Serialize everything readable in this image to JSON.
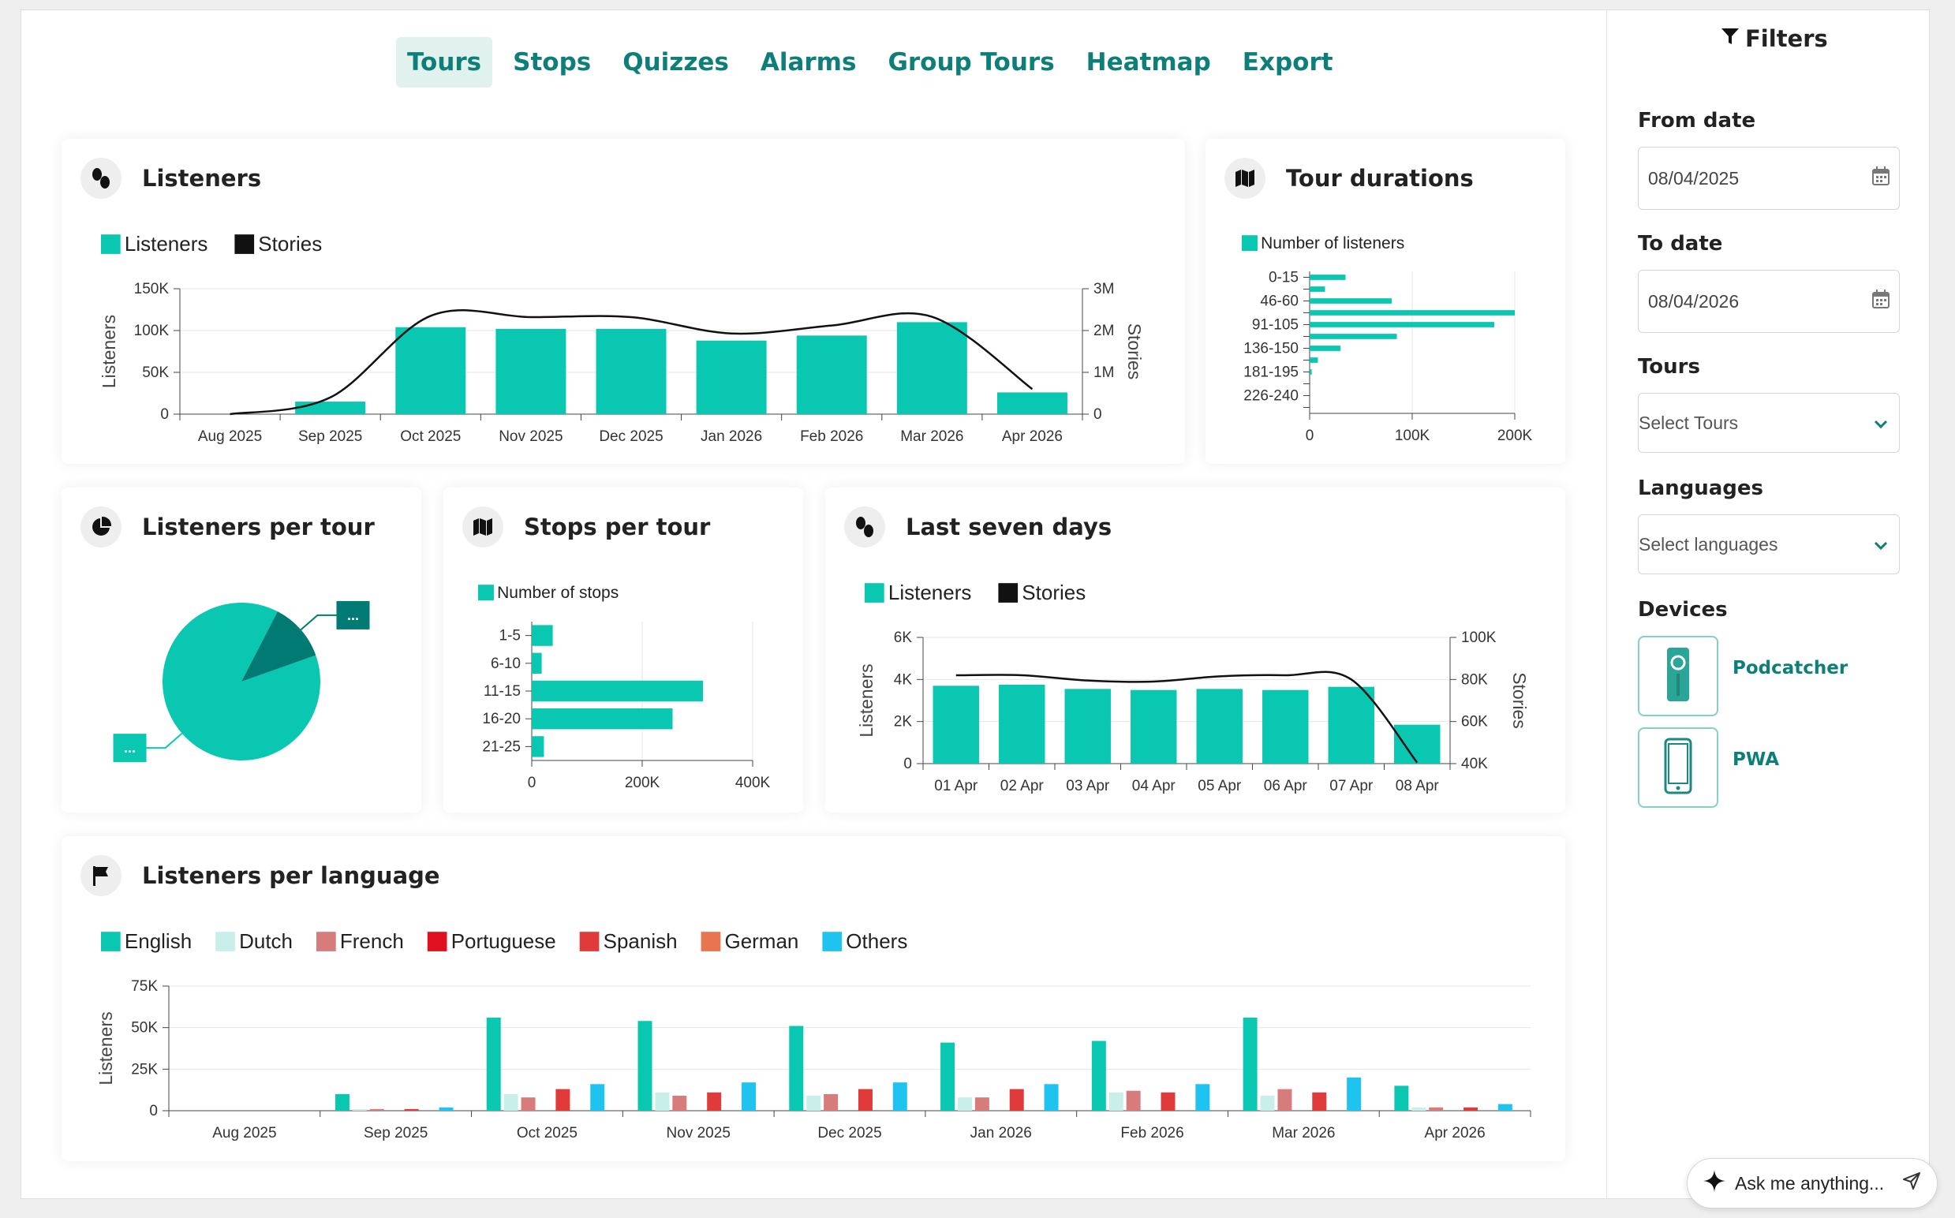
{
  "nav": {
    "tabs": [
      {
        "label": "Tours",
        "active": true
      },
      {
        "label": "Stops",
        "active": false
      },
      {
        "label": "Quizzes",
        "active": false
      },
      {
        "label": "Alarms",
        "active": false
      },
      {
        "label": "Group Tours",
        "active": false
      },
      {
        "label": "Heatmap",
        "active": false
      },
      {
        "label": "Export",
        "active": false
      }
    ]
  },
  "colors": {
    "accent": "#0d7f78",
    "teal": "#0ac7b2",
    "dark_teal": "#007a72",
    "line": "#111111",
    "grid": "#e6e6e6"
  },
  "cards": {
    "listeners": {
      "title": "Listeners",
      "icon": "footsteps-icon"
    },
    "tour_durations": {
      "title": "Tour durations",
      "icon": "map-icon"
    },
    "listeners_per_tour": {
      "title": "Listeners per tour",
      "icon": "pie-chart-icon"
    },
    "stops_per_tour": {
      "title": "Stops per tour",
      "icon": "map-icon"
    },
    "last_seven_days": {
      "title": "Last seven days",
      "icon": "footsteps-icon"
    },
    "listeners_per_language": {
      "title": "Listeners per language",
      "icon": "flag-icon"
    }
  },
  "chart_data": [
    {
      "id": "listeners",
      "type": "bar",
      "categories": [
        "Aug 2025",
        "Sep 2025",
        "Oct 2025",
        "Nov 2025",
        "Dec 2025",
        "Jan 2026",
        "Feb 2026",
        "Mar 2026",
        "Apr 2026"
      ],
      "series": [
        {
          "name": "Listeners",
          "type": "bar",
          "axis": "left",
          "color": "#0ac7b2",
          "values": [
            0,
            15000,
            104000,
            102000,
            102000,
            88000,
            94000,
            110000,
            26000
          ]
        },
        {
          "name": "Stories",
          "type": "line",
          "axis": "right",
          "color": "#111111",
          "values": [
            0,
            400000,
            2350000,
            2320000,
            2320000,
            1930000,
            2120000,
            2330000,
            600000
          ]
        }
      ],
      "ylabel": "Listeners",
      "ylim": [
        0,
        150000
      ],
      "yticks": [
        "0",
        "50K",
        "100K",
        "150K"
      ],
      "y2label": "Stories",
      "y2lim": [
        0,
        3000000
      ],
      "y2ticks": [
        "0",
        "1M",
        "2M",
        "3M"
      ],
      "legend": "top-left",
      "grid": true
    },
    {
      "id": "tour_durations",
      "type": "bar",
      "orientation": "horizontal",
      "categories": [
        "0-15",
        "",
        "46-60",
        "",
        "91-105",
        "",
        "136-150",
        "",
        "181-195",
        "",
        "226-240",
        ""
      ],
      "series": [
        {
          "name": "Number of listeners",
          "color": "#0ac7b2",
          "values": [
            35000,
            15000,
            80000,
            200000,
            180000,
            85000,
            30000,
            8000,
            2000,
            0,
            0,
            0
          ]
        }
      ],
      "xlim": [
        0,
        200000
      ],
      "xticks": [
        "0",
        "100K",
        "200K"
      ],
      "legend": "top-left",
      "grid": true
    },
    {
      "id": "listeners_per_tour",
      "type": "pie",
      "slices": [
        {
          "label": "...",
          "value": 88,
          "color": "#0ac7b2"
        },
        {
          "label": "...",
          "value": 12,
          "color": "#007a72"
        }
      ]
    },
    {
      "id": "stops_per_tour",
      "type": "bar",
      "orientation": "horizontal",
      "categories": [
        "1-5",
        "6-10",
        "11-15",
        "16-20",
        "21-25"
      ],
      "series": [
        {
          "name": "Number of stops",
          "color": "#0ac7b2",
          "values": [
            38000,
            18000,
            310000,
            255000,
            22000
          ]
        }
      ],
      "xlim": [
        0,
        400000
      ],
      "xticks": [
        "0",
        "200K",
        "400K"
      ],
      "legend": "top-left",
      "grid": true
    },
    {
      "id": "last_seven_days",
      "type": "bar",
      "categories": [
        "01 Apr",
        "02 Apr",
        "03 Apr",
        "04 Apr",
        "05 Apr",
        "06 Apr",
        "07 Apr",
        "08 Apr"
      ],
      "series": [
        {
          "name": "Listeners",
          "type": "bar",
          "axis": "left",
          "color": "#0ac7b2",
          "values": [
            3700,
            3750,
            3550,
            3500,
            3550,
            3500,
            3650,
            1850
          ]
        },
        {
          "name": "Stories",
          "type": "line",
          "axis": "right",
          "color": "#111111",
          "values": [
            82000,
            82000,
            79500,
            79000,
            81500,
            82000,
            80000,
            40500
          ]
        }
      ],
      "ylabel": "Listeners",
      "ylim": [
        0,
        6000
      ],
      "yticks": [
        "0",
        "2K",
        "4K",
        "6K"
      ],
      "y2label": "Stories",
      "y2lim": [
        40000,
        100000
      ],
      "y2ticks": [
        "40K",
        "60K",
        "80K",
        "100K"
      ],
      "legend": "top-left",
      "grid": true
    },
    {
      "id": "listeners_per_language",
      "type": "bar",
      "categories": [
        "Aug 2025",
        "Sep 2025",
        "Oct 2025",
        "Nov 2025",
        "Dec 2025",
        "Jan 2026",
        "Feb 2026",
        "Mar 2026",
        "Apr 2026"
      ],
      "series": [
        {
          "name": "English",
          "color": "#0ac7b2",
          "values": [
            0,
            10000,
            56000,
            54000,
            51000,
            41000,
            42000,
            56000,
            15000
          ]
        },
        {
          "name": "Dutch",
          "color": "#c9efea",
          "values": [
            0,
            1000,
            10000,
            11000,
            9000,
            8000,
            11000,
            9000,
            2000
          ]
        },
        {
          "name": "French",
          "color": "#d77b7b",
          "values": [
            0,
            1000,
            8000,
            9000,
            10000,
            8000,
            12000,
            13000,
            2000
          ]
        },
        {
          "name": "Portuguese",
          "color": "#e0101e",
          "values": [
            0,
            0,
            0,
            0,
            0,
            0,
            0,
            0,
            0
          ]
        },
        {
          "name": "Spanish",
          "color": "#e03a3a",
          "values": [
            0,
            1000,
            13000,
            11000,
            13000,
            13000,
            11000,
            11000,
            2000
          ]
        },
        {
          "name": "German",
          "color": "#e87550",
          "values": [
            0,
            0,
            0,
            0,
            0,
            0,
            0,
            0,
            0
          ]
        },
        {
          "name": "Others",
          "color": "#1fc3f0",
          "values": [
            0,
            2000,
            16000,
            17000,
            17000,
            16000,
            16000,
            20000,
            4000
          ]
        }
      ],
      "ylabel": "Listeners",
      "ylim": [
        0,
        75000
      ],
      "yticks": [
        "0",
        "25K",
        "50K",
        "75K"
      ],
      "legend": "top-left",
      "grid": true
    }
  ],
  "sidebar": {
    "title": "Filters",
    "from_date": {
      "label": "From date",
      "value": "08/04/2025"
    },
    "to_date": {
      "label": "To date",
      "value": "08/04/2026"
    },
    "tours": {
      "label": "Tours",
      "placeholder": "Select Tours"
    },
    "languages": {
      "label": "Languages",
      "placeholder": "Select languages"
    },
    "devices": {
      "label": "Devices",
      "items": [
        {
          "label": "Podcatcher",
          "icon": "podcatcher-device-icon"
        },
        {
          "label": "PWA",
          "icon": "smartphone-icon"
        }
      ]
    }
  },
  "assistant": {
    "placeholder": "Ask me anything..."
  }
}
